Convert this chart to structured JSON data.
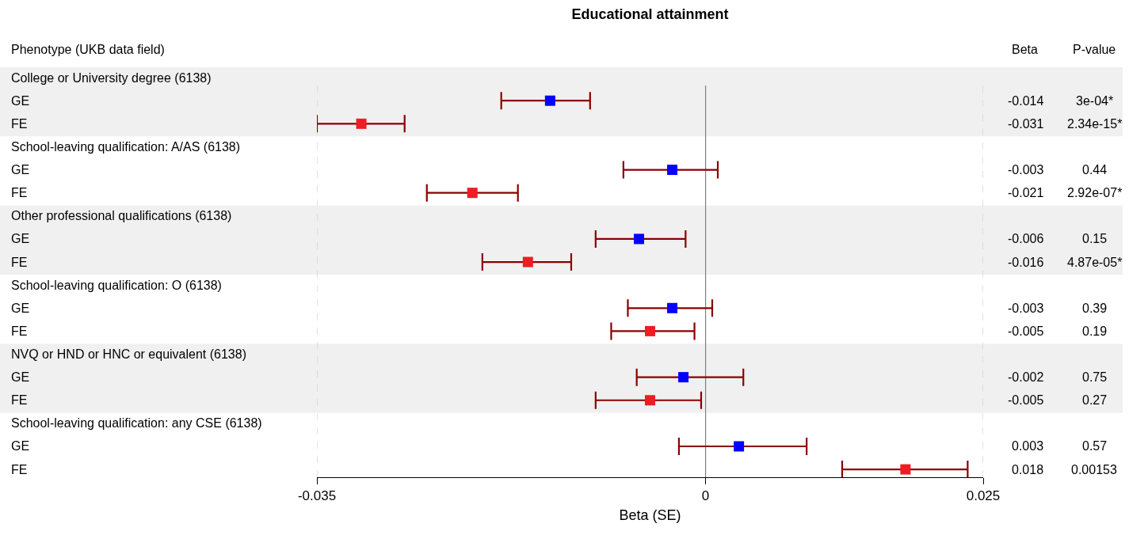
{
  "chart_data": {
    "type": "scatter",
    "orientation": "horizontal",
    "title": "Educational attainment",
    "xlabel": "Beta (SE)",
    "categories": [
      "College or University degree (6138)",
      "GE",
      "FE",
      "School-leaving qualification: A/AS (6138)",
      "GE",
      "FE",
      "Other professional qualifications (6138)",
      "GE",
      "FE",
      "School-leaving qualification: O (6138)",
      "GE",
      "FE",
      "NVQ or HND or HNC or equivalent (6138)",
      "GE",
      "FE",
      "School-leaving qualification: any CSE (6138)",
      "GE",
      "FE"
    ],
    "values": [
      null,
      -0.014,
      -0.031,
      null,
      -0.003,
      -0.021,
      null,
      -0.006,
      -0.016,
      null,
      -0.003,
      -0.005,
      null,
      -0.002,
      -0.005,
      null,
      0.003,
      0.018
    ],
    "colors": [
      null,
      "#0000ff",
      "#ee1c25",
      null,
      "#0000ff",
      "#ee1c25",
      null,
      "#0000ff",
      "#ee1c25",
      null,
      "#0000ff",
      "#ee1c25",
      null,
      "#0000ff",
      "#ee1c25",
      null,
      "#0000ff",
      "#ee1c25"
    ],
    "errors": [
      null,
      [
        -0.0184,
        -0.0104
      ],
      [
        -0.035,
        -0.0271
      ],
      null,
      [
        -0.0074,
        0.0011
      ],
      [
        -0.0251,
        -0.0169
      ],
      null,
      [
        -0.0099,
        -0.0018
      ],
      [
        -0.0201,
        -0.0121
      ],
      null,
      [
        -0.007,
        0.0006
      ],
      [
        -0.0085,
        -0.001
      ],
      null,
      [
        -0.0062,
        0.0034
      ],
      [
        -0.0099,
        -0.0004
      ],
      null,
      [
        -0.0024,
        0.0091
      ],
      [
        0.0123,
        0.0236
      ]
    ],
    "data_labels": true,
    "marker": "square",
    "xlim": [
      -0.035,
      0.025
    ],
    "xticks": [
      -0.035,
      0,
      0.025
    ],
    "ref_lines": [
      {
        "axis": "x",
        "value": 0,
        "color": "#808080"
      },
      {
        "axis": "x",
        "value": -0.035,
        "color": "#d0d0d0",
        "line_style": "dashed"
      },
      {
        "axis": "x",
        "value": 0.025,
        "color": "#d0d0d0",
        "line_style": "dashed"
      }
    ],
    "annotations": [
      "Phenotype (UKB data field)",
      "Beta",
      "P-value",
      "3e-04*",
      "2.34e-15*",
      "0.44",
      "2.92e-07*",
      "0.15",
      "4.87e-05*",
      "0.39",
      "0.19",
      "0.75",
      "0.27",
      "0.57",
      "0.00153"
    ]
  }
}
